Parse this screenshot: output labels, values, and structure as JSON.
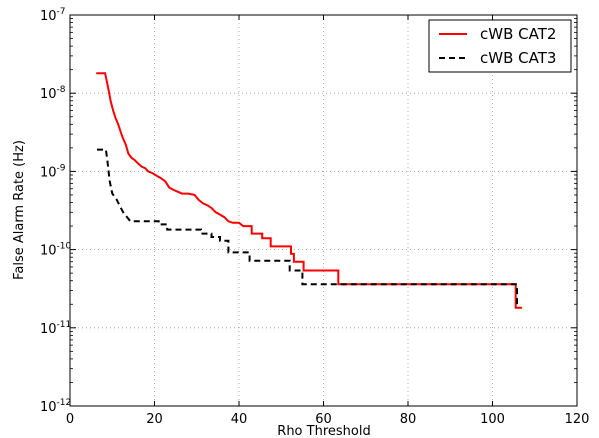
{
  "chart_data": {
    "type": "line",
    "xlabel": "Rho Threshold",
    "ylabel": "False Alarm Rate (Hz)",
    "xlim": [
      0,
      120
    ],
    "ylim_exp": [
      -12,
      -7
    ],
    "yscale": "log",
    "grid": true,
    "legend_position": "top-right",
    "xticks": [
      {
        "value": 0,
        "label": "0"
      },
      {
        "value": 20,
        "label": "20"
      },
      {
        "value": 40,
        "label": "40"
      },
      {
        "value": 60,
        "label": "60"
      },
      {
        "value": 80,
        "label": "80"
      },
      {
        "value": 100,
        "label": "100"
      },
      {
        "value": 120,
        "label": "120"
      }
    ],
    "yticks": [
      {
        "exp": -12,
        "base": "10",
        "sup": "-12"
      },
      {
        "exp": -11,
        "base": "10",
        "sup": "-11"
      },
      {
        "exp": -10,
        "base": "10",
        "sup": "-10"
      },
      {
        "exp": -9,
        "base": "10",
        "sup": "-9"
      },
      {
        "exp": -8,
        "base": "10",
        "sup": "-8"
      },
      {
        "exp": -7,
        "base": "10",
        "sup": "-7"
      }
    ],
    "series": [
      {
        "name": "cWB CAT2",
        "color": "#ff0000",
        "dash": "solid",
        "points": [
          [
            6.2,
            1.8e-08
          ],
          [
            8.3,
            1.8e-08
          ],
          [
            9.0,
            1.2e-08
          ],
          [
            9.6,
            8e-09
          ],
          [
            10.2,
            6e-09
          ],
          [
            10.8,
            4.8e-09
          ],
          [
            11.4,
            4e-09
          ],
          [
            12.0,
            3.2e-09
          ],
          [
            12.6,
            2.6e-09
          ],
          [
            13.2,
            2.2e-09
          ],
          [
            13.8,
            1.7e-09
          ],
          [
            14.5,
            1.5e-09
          ],
          [
            15.3,
            1.4e-09
          ],
          [
            16.2,
            1.25e-09
          ],
          [
            17.0,
            1.15e-09
          ],
          [
            17.8,
            1.1e-09
          ],
          [
            18.5,
            1e-09
          ],
          [
            19.5,
            9.5e-10
          ],
          [
            20.5,
            8.8e-10
          ],
          [
            21.5,
            8.2e-10
          ],
          [
            22.5,
            7.5e-10
          ],
          [
            23.5,
            6.2e-10
          ],
          [
            24.5,
            5.8e-10
          ],
          [
            25.5,
            5.5e-10
          ],
          [
            26.5,
            5.2e-10
          ],
          [
            28.0,
            5.2e-10
          ],
          [
            29.5,
            5e-10
          ],
          [
            30.5,
            4.3e-10
          ],
          [
            31.5,
            3.9e-10
          ],
          [
            32.5,
            3.7e-10
          ],
          [
            33.5,
            3.4e-10
          ],
          [
            34.5,
            3e-10
          ],
          [
            35.5,
            2.8e-10
          ],
          [
            36.5,
            2.6e-10
          ],
          [
            37.5,
            2.3e-10
          ],
          [
            38.5,
            2.2e-10
          ],
          [
            40.0,
            2.2e-10
          ],
          [
            41.0,
            2e-10
          ],
          [
            43.0,
            2e-10
          ],
          [
            43.0,
            1.6e-10
          ],
          [
            45.5,
            1.6e-10
          ],
          [
            45.5,
            1.4e-10
          ],
          [
            47.5,
            1.4e-10
          ],
          [
            47.5,
            1.1e-10
          ],
          [
            52.3,
            1.1e-10
          ],
          [
            52.3,
            8.8e-11
          ],
          [
            53.0,
            8.8e-11
          ],
          [
            53.0,
            7e-11
          ],
          [
            55.3,
            7e-11
          ],
          [
            55.3,
            5.4e-11
          ],
          [
            63.5,
            5.4e-11
          ],
          [
            63.5,
            3.6e-11
          ],
          [
            105.5,
            3.6e-11
          ],
          [
            105.5,
            1.8e-11
          ],
          [
            107.0,
            1.8e-11
          ]
        ]
      },
      {
        "name": "cWB CAT3",
        "color": "#000000",
        "dash": "dashed",
        "points": [
          [
            6.4,
            1.9e-09
          ],
          [
            8.5,
            1.9e-09
          ],
          [
            8.9,
            1.3e-09
          ],
          [
            9.4,
            7.5e-10
          ],
          [
            10.0,
            5.2e-10
          ],
          [
            11.0,
            4.4e-10
          ],
          [
            11.8,
            3.6e-10
          ],
          [
            12.6,
            3e-10
          ],
          [
            13.5,
            2.6e-10
          ],
          [
            14.3,
            2.3e-10
          ],
          [
            21.0,
            2.3e-10
          ],
          [
            21.0,
            2.1e-10
          ],
          [
            23.0,
            2.1e-10
          ],
          [
            23.0,
            1.8e-10
          ],
          [
            31.0,
            1.8e-10
          ],
          [
            31.0,
            1.6e-10
          ],
          [
            33.5,
            1.6e-10
          ],
          [
            33.5,
            1.45e-10
          ],
          [
            35.5,
            1.45e-10
          ],
          [
            35.5,
            1.3e-10
          ],
          [
            37.5,
            1.3e-10
          ],
          [
            37.5,
            9.2e-11
          ],
          [
            42.5,
            9.2e-11
          ],
          [
            42.5,
            7.2e-11
          ],
          [
            52.0,
            7.2e-11
          ],
          [
            52.0,
            5.4e-11
          ],
          [
            55.0,
            5.4e-11
          ],
          [
            55.0,
            3.6e-11
          ],
          [
            105.8,
            3.6e-11
          ],
          [
            105.8,
            1.8e-11
          ]
        ]
      }
    ]
  }
}
